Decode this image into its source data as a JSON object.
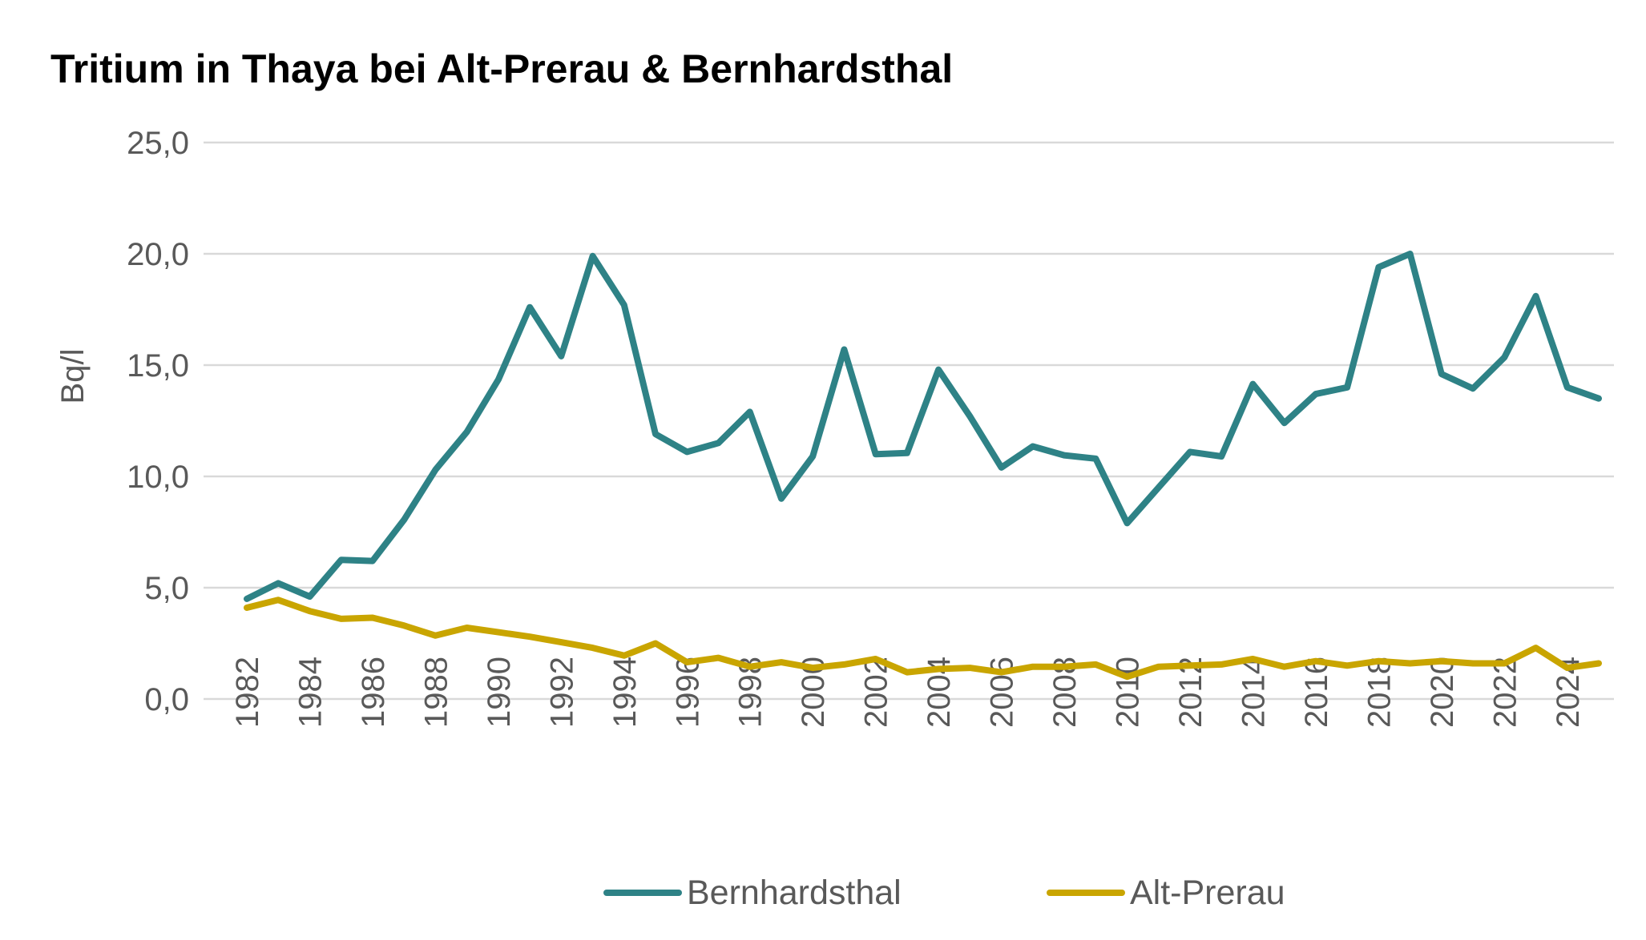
{
  "chart_data": {
    "type": "line",
    "title": "Tritium in Thaya bei Alt-Prerau & Bernhardsthal",
    "xlabel": "",
    "ylabel": "Bq/l",
    "ylim": [
      0,
      25
    ],
    "yticks": [
      "0,0",
      "5,0",
      "10,0",
      "15,0",
      "20,0",
      "25,0"
    ],
    "ytick_values": [
      0,
      5,
      10,
      15,
      20,
      25
    ],
    "x": [
      1982,
      1983,
      1984,
      1985,
      1986,
      1987,
      1988,
      1989,
      1990,
      1991,
      1992,
      1993,
      1994,
      1995,
      1996,
      1997,
      1998,
      1999,
      2000,
      2001,
      2002,
      2003,
      2004,
      2005,
      2006,
      2007,
      2008,
      2009,
      2010,
      2011,
      2012,
      2013,
      2014,
      2015,
      2016,
      2017,
      2018,
      2019,
      2020,
      2021,
      2022,
      2023,
      2024,
      2025
    ],
    "xticks": [
      "1982",
      "1984",
      "1986",
      "1988",
      "1990",
      "1992",
      "1994",
      "1996",
      "1998",
      "2000",
      "2002",
      "2004",
      "2006",
      "2008",
      "2010",
      "2012",
      "2014",
      "2016",
      "2018",
      "2020",
      "2022",
      "2024"
    ],
    "grid": "horizontal",
    "legend_position": "bottom",
    "series": [
      {
        "name": "Bernhardsthal",
        "color": "#2E8286",
        "values": [
          4.5,
          5.2,
          4.6,
          6.25,
          6.2,
          8.05,
          10.3,
          12.0,
          14.35,
          17.6,
          15.4,
          19.9,
          17.7,
          11.9,
          11.1,
          11.5,
          12.9,
          9.0,
          10.9,
          15.7,
          11.0,
          11.05,
          14.8,
          12.7,
          10.4,
          11.35,
          10.95,
          10.8,
          7.9,
          9.5,
          11.1,
          10.9,
          14.15,
          12.4,
          13.7,
          14.0,
          19.4,
          20.0,
          14.6,
          13.95,
          15.35,
          18.1,
          14.0,
          13.5
        ]
      },
      {
        "name": "Alt-Prerau",
        "color": "#C9A500",
        "values": [
          4.1,
          4.45,
          3.95,
          3.6,
          3.65,
          3.3,
          2.85,
          3.2,
          3.0,
          2.8,
          2.55,
          2.3,
          1.95,
          2.5,
          1.65,
          1.85,
          1.45,
          1.65,
          1.4,
          1.55,
          1.8,
          1.2,
          1.35,
          1.4,
          1.2,
          1.45,
          1.45,
          1.55,
          1.0,
          1.45,
          1.5,
          1.55,
          1.8,
          1.45,
          1.7,
          1.5,
          1.7,
          1.6,
          1.7,
          1.6,
          1.6,
          2.3,
          1.4,
          1.6
        ]
      }
    ]
  }
}
